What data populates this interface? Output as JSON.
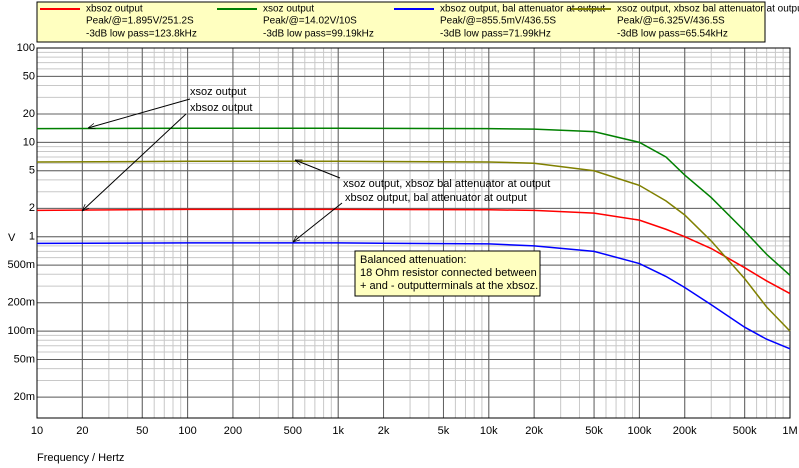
{
  "chart_data": {
    "type": "line",
    "x_label": "Frequency / Hertz",
    "y_label": "V",
    "xscale": "log",
    "yscale": "log",
    "grid": true,
    "minor_grid": true,
    "xlim": [
      10,
      1000000
    ],
    "ylim": [
      0.012,
      100
    ],
    "xticks": [
      10,
      20,
      50,
      100,
      200,
      500,
      {
        "value": 1000,
        "label": "1k"
      },
      {
        "value": 2000,
        "label": "2k"
      },
      {
        "value": 5000,
        "label": "5k"
      },
      {
        "value": 10000,
        "label": "10k"
      },
      {
        "value": 20000,
        "label": "20k"
      },
      {
        "value": 50000,
        "label": "50k"
      },
      {
        "value": 100000,
        "label": "100k"
      },
      {
        "value": 200000,
        "label": "200k"
      },
      {
        "value": 500000,
        "label": "500k"
      },
      {
        "value": 1000000,
        "label": "1M"
      }
    ],
    "yticks": [
      100,
      50,
      20,
      10,
      5,
      2,
      1,
      {
        "value": 0.5,
        "label": "500m"
      },
      {
        "value": 0.2,
        "label": "200m"
      },
      {
        "value": 0.1,
        "label": "100m"
      },
      {
        "value": 0.05,
        "label": "50m"
      },
      {
        "value": 0.02,
        "label": "20m"
      }
    ],
    "x": [
      10,
      100,
      1000,
      10000,
      20000,
      50000,
      100000,
      150000,
      200000,
      300000,
      500000,
      700000,
      1000000
    ],
    "series": [
      {
        "name": "xbsoz output",
        "color": "#ff0000",
        "peak": "Peak/@=1.895V/251.2S",
        "cutoff": "-3dB low pass=123.8kHz",
        "values": [
          1.9,
          1.95,
          1.95,
          1.93,
          1.9,
          1.78,
          1.5,
          1.2,
          1.0,
          0.75,
          0.47,
          0.34,
          0.25
        ]
      },
      {
        "name": "xsoz output",
        "color": "#008000",
        "peak": "Peak/@=14.02V/10S",
        "cutoff": "-3dB low pass=99.19kHz",
        "values": [
          14,
          14.1,
          14.1,
          14,
          13.8,
          13,
          10,
          7,
          4.5,
          2.6,
          1.15,
          0.65,
          0.39
        ]
      },
      {
        "name": "xbsoz output, bal attenuator at output",
        "color": "#0000ff",
        "peak": "Peak/@=855.5mV/436.5S",
        "cutoff": "-3dB low pass=71.99kHz",
        "values": [
          0.85,
          0.86,
          0.86,
          0.84,
          0.8,
          0.7,
          0.52,
          0.38,
          0.29,
          0.19,
          0.11,
          0.082,
          0.065
        ]
      },
      {
        "name": "xsoz output, xbsoz bal attenuator at output",
        "color": "#808000",
        "peak": "Peak/@=6.325V/436.5S",
        "cutoff": "-3dB low pass=65.54kHz",
        "values": [
          6.2,
          6.3,
          6.3,
          6.2,
          6.0,
          5.0,
          3.5,
          2.4,
          1.7,
          0.9,
          0.36,
          0.18,
          0.1
        ]
      }
    ],
    "annotations": [
      "xsoz output",
      "xbsoz output",
      "xsoz output, xbsoz bal attenuator at output",
      "xbsoz output, bal attenuator at output"
    ],
    "note": [
      "Balanced attenuation:",
      "18 Ohm resistor connected between",
      "+ and - outputterminals at the xbsoz."
    ]
  }
}
